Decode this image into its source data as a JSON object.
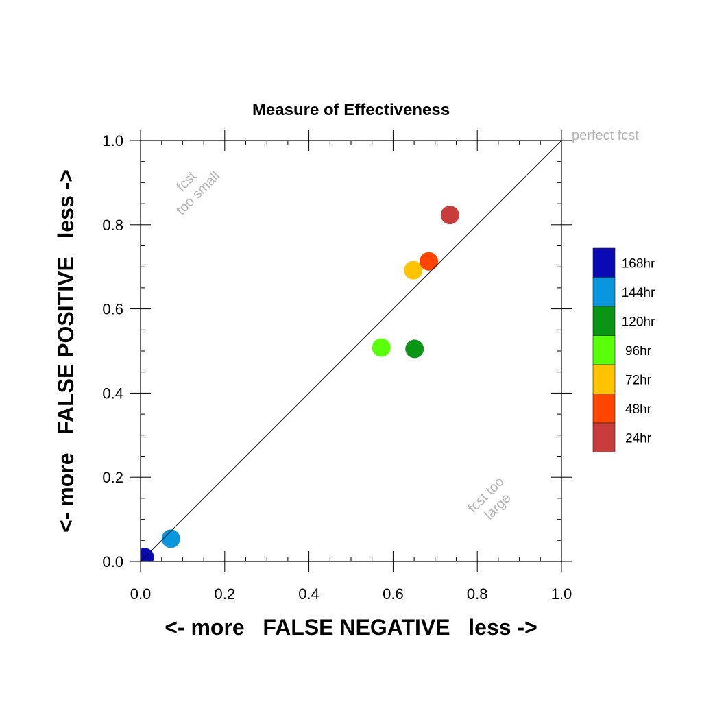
{
  "chart_data": {
    "type": "scatter",
    "title": "Measure of Effectiveness",
    "xlabel": "<- more   FALSE NEGATIVE   less ->",
    "ylabel": "<- more   FALSE POSITIVE   less ->",
    "xlim": [
      0,
      1
    ],
    "ylim": [
      0,
      1
    ],
    "x_ticks": [
      "0.0",
      "0.2",
      "0.4",
      "0.6",
      "0.8",
      "1.0"
    ],
    "y_ticks": [
      "0.0",
      "0.2",
      "0.4",
      "0.6",
      "0.8",
      "1.0"
    ],
    "grid": false,
    "diagonal_line": true,
    "annotations": {
      "perfect": "perfect fcst",
      "too_small_line1": "fcst",
      "too_small_line2": "too small",
      "too_large_line1": "fcst too",
      "too_large_line2": "large"
    },
    "legend_position": "right",
    "series": [
      {
        "name": "168hr",
        "color": "#0a0ab4",
        "x": 0.01,
        "y": 0.01
      },
      {
        "name": "144hr",
        "color": "#0a96dc",
        "x": 0.072,
        "y": 0.054
      },
      {
        "name": "120hr",
        "color": "#0a9614",
        "x": 0.651,
        "y": 0.505
      },
      {
        "name": "96hr",
        "color": "#5aff0a",
        "x": 0.572,
        "y": 0.508
      },
      {
        "name": "72hr",
        "color": "#ffc300",
        "x": 0.648,
        "y": 0.692
      },
      {
        "name": "48hr",
        "color": "#ff4600",
        "x": 0.685,
        "y": 0.713
      },
      {
        "name": "24hr",
        "color": "#c83c3c",
        "x": 0.735,
        "y": 0.823
      }
    ]
  }
}
